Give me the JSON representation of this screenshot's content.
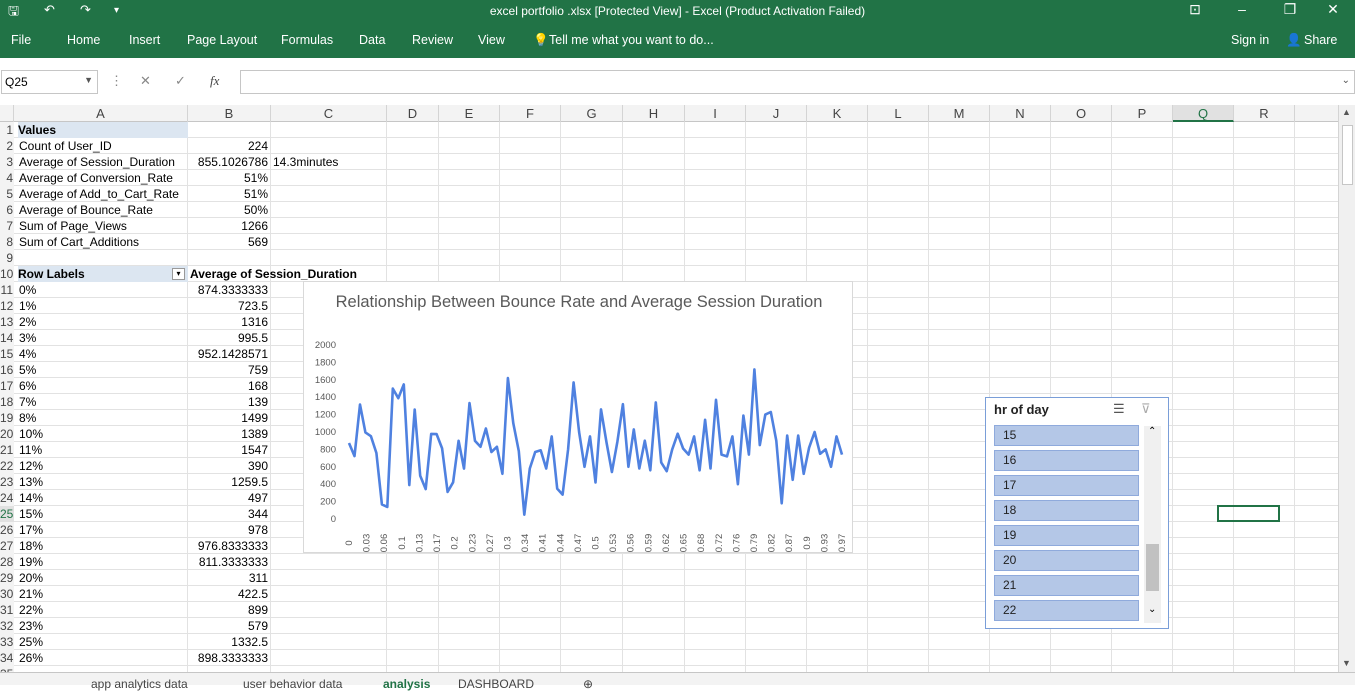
{
  "app": {
    "title": "excel portfolio .xlsx  [Protected View] - Excel (Product Activation Failed)",
    "accent": "#217346"
  },
  "ribbon": {
    "tabs": [
      "File",
      "Home",
      "Insert",
      "Page Layout",
      "Formulas",
      "Data",
      "Review",
      "View"
    ],
    "tell_me": "Tell me what you want to do...",
    "sign_in": "Sign in",
    "share": "Share"
  },
  "formula_bar": {
    "name_box": "Q25",
    "fx": "fx",
    "value": ""
  },
  "columns": [
    "A",
    "B",
    "C",
    "D",
    "E",
    "F",
    "G",
    "H",
    "I",
    "J",
    "K",
    "L",
    "M",
    "N",
    "O",
    "P",
    "Q",
    "R"
  ],
  "values_section": {
    "header": "Values",
    "rows": [
      {
        "label": "Count of User_ID",
        "value": "224",
        "extra": ""
      },
      {
        "label": "Average of Session_Duration",
        "value": "855.1026786",
        "extra": "14.3minutes"
      },
      {
        "label": "Average of Conversion_Rate",
        "value": "51%",
        "extra": ""
      },
      {
        "label": "Average of Add_to_Cart_Rate",
        "value": "51%",
        "extra": ""
      },
      {
        "label": "Average of Bounce_Rate",
        "value": "50%",
        "extra": ""
      },
      {
        "label": "Sum of Page_Views",
        "value": "1266",
        "extra": ""
      },
      {
        "label": "Sum of Cart_Additions",
        "value": "569",
        "extra": ""
      }
    ]
  },
  "pivot": {
    "row_labels": "Row Labels",
    "value_header": "Average of Session_Duration",
    "rows": [
      {
        "label": "0%",
        "value": "874.3333333"
      },
      {
        "label": "1%",
        "value": "723.5"
      },
      {
        "label": "2%",
        "value": "1316"
      },
      {
        "label": "3%",
        "value": "995.5"
      },
      {
        "label": "4%",
        "value": "952.1428571"
      },
      {
        "label": "5%",
        "value": "759"
      },
      {
        "label": "6%",
        "value": "168"
      },
      {
        "label": "7%",
        "value": "139"
      },
      {
        "label": "8%",
        "value": "1499"
      },
      {
        "label": "10%",
        "value": "1389"
      },
      {
        "label": "11%",
        "value": "1547"
      },
      {
        "label": "12%",
        "value": "390"
      },
      {
        "label": "13%",
        "value": "1259.5"
      },
      {
        "label": "14%",
        "value": "497"
      },
      {
        "label": "15%",
        "value": "344"
      },
      {
        "label": "17%",
        "value": "978"
      },
      {
        "label": "18%",
        "value": "976.8333333"
      },
      {
        "label": "19%",
        "value": "811.3333333"
      },
      {
        "label": "20%",
        "value": "311"
      },
      {
        "label": "21%",
        "value": "422.5"
      },
      {
        "label": "22%",
        "value": "899"
      },
      {
        "label": "23%",
        "value": "579"
      },
      {
        "label": "25%",
        "value": "1332.5"
      },
      {
        "label": "26%",
        "value": "898.3333333"
      }
    ]
  },
  "chart_data": {
    "type": "line",
    "title": "Relationship Between Bounce Rate and Average Session Duration",
    "ylim": [
      0,
      2000
    ],
    "yticks": [
      "0",
      "200",
      "400",
      "600",
      "800",
      "1000",
      "1200",
      "1400",
      "1600",
      "1800",
      "2000"
    ],
    "xticks": [
      "0",
      "0.03",
      "0.06",
      "0.1",
      "0.13",
      "0.17",
      "0.2",
      "0.23",
      "0.27",
      "0.3",
      "0.34",
      "0.41",
      "0.44",
      "0.47",
      "0.5",
      "0.53",
      "0.56",
      "0.59",
      "0.62",
      "0.65",
      "0.68",
      "0.72",
      "0.76",
      "0.79",
      "0.82",
      "0.87",
      "0.9",
      "0.93",
      "0.97"
    ],
    "color": "#4f81e0",
    "values": [
      874,
      723,
      1316,
      995,
      952,
      759,
      168,
      139,
      1499,
      1389,
      1547,
      390,
      1259,
      497,
      344,
      978,
      976,
      811,
      311,
      422,
      899,
      579,
      1332,
      898,
      830,
      1040,
      770,
      830,
      520,
      1620,
      1100,
      780,
      50,
      580,
      770,
      790,
      580,
      950,
      350,
      280,
      800,
      1570,
      1000,
      600,
      950,
      420,
      1260,
      880,
      540,
      890,
      1320,
      600,
      1030,
      580,
      900,
      560,
      1340,
      650,
      550,
      800,
      980,
      810,
      740,
      950,
      560,
      1140,
      580,
      1370,
      740,
      720,
      950,
      400,
      1190,
      740,
      1720,
      850,
      1200,
      1230,
      900,
      180,
      960,
      450,
      960,
      520,
      820,
      1000,
      750,
      800,
      600,
      950,
      740
    ]
  },
  "slicer": {
    "title": "hr of day",
    "items": [
      "15",
      "16",
      "17",
      "18",
      "19",
      "20",
      "21",
      "22"
    ]
  },
  "sheet_tabs": [
    "app analytics data",
    "user behavior data",
    "analysis",
    "DASHBOARD"
  ],
  "active_tab": "analysis"
}
